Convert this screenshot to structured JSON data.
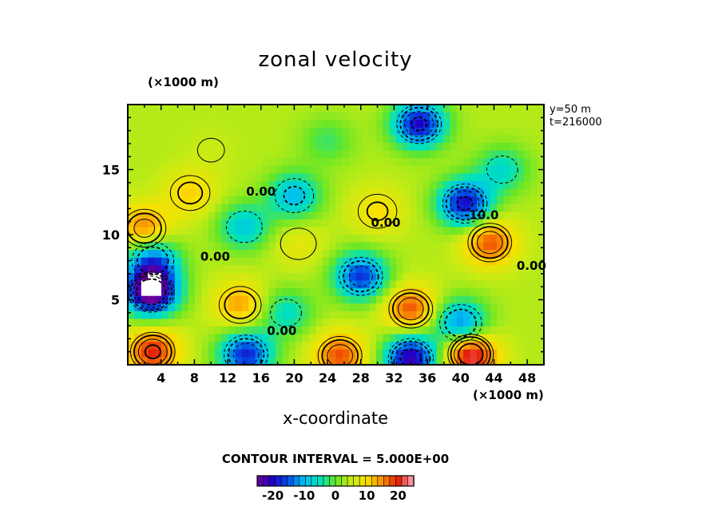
{
  "chart_data": {
    "type": "heatmap",
    "title": "zonal velocity",
    "xlabel": "x-coordinate",
    "x_unit": "(×1000 m)",
    "y_unit": "(×1000 m)",
    "info_lines": [
      "y=50  m",
      "t=216000"
    ],
    "contour_interval_text": "CONTOUR INTERVAL = 5.000E+00",
    "xlim": [
      0,
      50
    ],
    "ylim": [
      0,
      20
    ],
    "x_ticks": [
      4,
      8,
      12,
      16,
      20,
      24,
      28,
      32,
      36,
      40,
      44,
      48
    ],
    "y_ticks": [
      5,
      10,
      15
    ],
    "colorbar": {
      "range": [
        -25,
        25
      ],
      "ticks": [
        -20,
        -10,
        0,
        10,
        20
      ],
      "tick_labels": [
        "-20",
        "-10",
        "0",
        "10",
        "20"
      ]
    },
    "contour_labels": [
      {
        "text": "0.00",
        "x": 16,
        "y": 13
      },
      {
        "text": "0.00",
        "x": 31,
        "y": 10.6
      },
      {
        "text": "-10.0",
        "x": 42.5,
        "y": 11.2
      },
      {
        "text": "0.00",
        "x": 10.5,
        "y": 8
      },
      {
        "text": "0.00",
        "x": 18.5,
        "y": 2.3
      },
      {
        "text": "0.00",
        "x": 48.5,
        "y": 7.3
      }
    ],
    "features": [
      {
        "x": 2.8,
        "y": 5.6,
        "value": -28
      },
      {
        "x": 3.0,
        "y": 1.0,
        "value": 20
      },
      {
        "x": 14.2,
        "y": 0.8,
        "value": -18
      },
      {
        "x": 25.5,
        "y": 0.7,
        "value": 18
      },
      {
        "x": 34.0,
        "y": 0.5,
        "value": -22
      },
      {
        "x": 41.2,
        "y": 0.8,
        "value": 24
      },
      {
        "x": 34.0,
        "y": 4.3,
        "value": 18
      },
      {
        "x": 28.0,
        "y": 6.8,
        "value": -17
      },
      {
        "x": 35.0,
        "y": 18.5,
        "value": -20
      },
      {
        "x": 40.5,
        "y": 12.4,
        "value": -20
      },
      {
        "x": 20.0,
        "y": 13.0,
        "value": -10
      },
      {
        "x": 2.0,
        "y": 10.5,
        "value": 16
      },
      {
        "x": 43.5,
        "y": 9.4,
        "value": 18
      },
      {
        "x": 13.5,
        "y": 4.6,
        "value": 14
      },
      {
        "x": 3.0,
        "y": 8.0,
        "value": -14
      },
      {
        "x": 30.0,
        "y": 11.8,
        "value": 10
      },
      {
        "x": 7.5,
        "y": 13.2,
        "value": 11
      },
      {
        "x": 20.5,
        "y": 9.3,
        "value": 8
      },
      {
        "x": 10.0,
        "y": 16.5,
        "value": 5
      },
      {
        "x": 24.0,
        "y": 17.2,
        "value": -2
      },
      {
        "x": 45.0,
        "y": 15.0,
        "value": -6
      },
      {
        "x": 40.0,
        "y": 3.2,
        "value": -14
      },
      {
        "x": 19.0,
        "y": 4.0,
        "value": -6
      },
      {
        "x": 14.0,
        "y": 10.6,
        "value": -8
      }
    ]
  }
}
